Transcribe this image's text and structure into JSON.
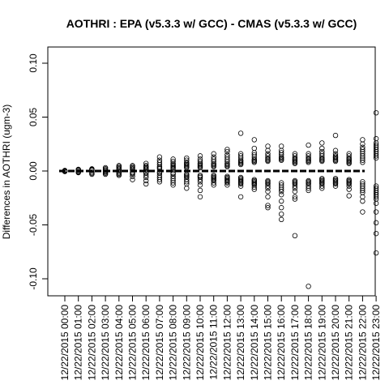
{
  "chart_data": {
    "type": "scatter",
    "title": "AOTHRI : EPA (v5.3.3 w/ GCC) - CMAS (v5.3.3 w/ GCC)",
    "ylabel": "Differences in AOTHRI (ugm-3)",
    "xlabel": "",
    "ylim": [
      -0.115,
      0.115
    ],
    "y_ticks": [
      -0.1,
      -0.05,
      0.0,
      0.05,
      0.1
    ],
    "y_tick_labels": [
      "-0.10",
      "-0.05",
      "0.00",
      "0.05",
      "0.10"
    ],
    "categories": [
      "12/22/2015 00:00",
      "12/22/2015 01:00",
      "12/22/2015 02:00",
      "12/22/2015 03:00",
      "12/22/2015 04:00",
      "12/22/2015 05:00",
      "12/22/2015 06:00",
      "12/22/2015 07:00",
      "12/22/2015 08:00",
      "12/22/2015 09:00",
      "12/22/2015 10:00",
      "12/22/2015 11:00",
      "12/22/2015 12:00",
      "12/22/2015 13:00",
      "12/22/2015 14:00",
      "12/22/2015 15:00",
      "12/22/2015 16:00",
      "12/22/2015 17:00",
      "12/22/2015 18:00",
      "12/22/2015 19:00",
      "12/22/2015 20:00",
      "12/22/2015 21:00",
      "12/22/2015 22:00",
      "12/22/2015 23:00"
    ],
    "series": [
      {
        "values": [
          [
            0.0005,
            -0.0005,
            0.0003,
            -0.0003,
            0.0
          ],
          [
            0.0015,
            -0.0015,
            0.001,
            -0.001,
            0.0005,
            -0.0005
          ],
          [
            0.002,
            -0.003,
            0.0015,
            -0.002,
            0.001,
            -0.001,
            0.0005
          ],
          [
            0.003,
            -0.003,
            0.002,
            -0.002,
            0.001,
            -0.001,
            0.0005,
            -0.0005
          ],
          [
            0.005,
            -0.004,
            0.004,
            -0.003,
            0.003,
            -0.002,
            0.002,
            -0.001,
            0.001
          ],
          [
            0.005,
            -0.008,
            0.004,
            -0.005,
            0.003,
            -0.003,
            0.002,
            -0.002,
            0.001,
            -0.001
          ],
          [
            0.007,
            -0.012,
            -0.009,
            0.005,
            -0.006,
            0.004,
            -0.004,
            0.003,
            -0.002,
            0.002,
            -0.001,
            0.001
          ],
          [
            0.013,
            0.01,
            -0.01,
            0.008,
            -0.008,
            0.006,
            -0.006,
            0.004,
            -0.004,
            0.003,
            -0.002,
            0.002,
            -0.001
          ],
          [
            0.011,
            -0.013,
            0.009,
            -0.011,
            0.007,
            -0.009,
            0.006,
            -0.007,
            0.005,
            -0.005,
            0.004,
            -0.003,
            0.003,
            -0.002,
            0.002
          ],
          [
            0.012,
            -0.016,
            0.01,
            -0.012,
            0.008,
            -0.01,
            0.007,
            -0.008,
            0.006,
            -0.006,
            0.005,
            -0.005,
            0.004,
            -0.004,
            0.003,
            -0.003
          ],
          [
            0.014,
            -0.024,
            -0.018,
            0.011,
            -0.013,
            0.009,
            -0.01,
            0.007,
            -0.008,
            0.006,
            -0.006,
            0.005,
            -0.005,
            0.004,
            -0.004,
            0.003
          ],
          [
            0.016,
            -0.013,
            0.013,
            -0.011,
            0.011,
            -0.009,
            0.009,
            -0.008,
            0.007,
            -0.007,
            0.006,
            -0.006,
            0.005,
            -0.005,
            0.004,
            -0.004
          ],
          [
            0.02,
            0.018,
            -0.013,
            0.015,
            -0.011,
            0.013,
            -0.01,
            0.011,
            -0.009,
            0.009,
            -0.008,
            0.007,
            -0.007,
            0.006,
            -0.006,
            0.005,
            -0.005,
            0.004
          ],
          [
            0.035,
            -0.024,
            0.016,
            -0.014,
            0.014,
            -0.012,
            0.012,
            -0.011,
            0.01,
            -0.01,
            0.009,
            -0.009,
            0.008,
            -0.008,
            0.007,
            -0.007,
            0.006,
            -0.006
          ],
          [
            0.029,
            0.021,
            -0.017,
            0.017,
            -0.015,
            0.015,
            -0.013,
            0.013,
            -0.012,
            0.011,
            -0.011,
            0.01,
            -0.01,
            0.009,
            -0.009,
            0.008,
            -0.008
          ],
          [
            0.023,
            -0.034,
            -0.032,
            -0.024,
            0.019,
            -0.019,
            0.016,
            -0.016,
            0.014,
            -0.014,
            0.012,
            -0.012,
            0.011,
            -0.011,
            0.01,
            -0.01,
            0.009,
            -0.009
          ],
          [
            0.023,
            -0.045,
            -0.04,
            -0.034,
            -0.028,
            0.019,
            -0.022,
            0.017,
            -0.019,
            0.015,
            -0.017,
            0.013,
            -0.015,
            0.012,
            -0.013,
            0.011,
            -0.011,
            0.01
          ],
          [
            0.016,
            -0.06,
            -0.026,
            -0.024,
            0.014,
            -0.019,
            0.012,
            -0.016,
            0.011,
            -0.014,
            0.01,
            -0.012,
            0.009,
            -0.011,
            0.008,
            -0.01,
            0.007,
            -0.009
          ],
          [
            0.024,
            0.016,
            -0.107,
            -0.018,
            0.014,
            -0.016,
            0.012,
            -0.014,
            0.011,
            -0.012,
            0.01,
            -0.011,
            0.009,
            -0.01,
            0.008,
            -0.009
          ],
          [
            0.026,
            0.021,
            -0.016,
            0.018,
            -0.014,
            0.016,
            -0.012,
            0.014,
            -0.011,
            0.012,
            -0.01,
            0.011,
            -0.009,
            0.01,
            -0.008,
            0.009,
            -0.007
          ],
          [
            0.033,
            0.019,
            -0.014,
            0.016,
            -0.012,
            0.014,
            -0.011,
            0.013,
            -0.01,
            0.012,
            -0.009,
            0.011,
            -0.008,
            0.01,
            -0.007,
            0.009
          ],
          [
            0.016,
            -0.023,
            0.014,
            -0.017,
            0.012,
            -0.014,
            0.011,
            -0.012,
            0.01,
            -0.011,
            0.009,
            -0.01,
            0.008,
            -0.009,
            0.007,
            -0.008
          ],
          [
            0.029,
            0.025,
            -0.038,
            -0.028,
            0.022,
            -0.024,
            0.02,
            -0.02,
            0.018,
            -0.018,
            0.016,
            -0.016,
            0.014,
            -0.014,
            0.012,
            -0.012,
            0.01,
            -0.01,
            0.008
          ],
          [
            0.054,
            0.03,
            -0.076,
            -0.058,
            -0.048,
            -0.038,
            0.026,
            -0.03,
            0.024,
            -0.026,
            0.022,
            -0.024,
            0.02,
            -0.022,
            0.018,
            -0.02,
            0.016,
            -0.018,
            0.014,
            -0.016,
            0.012,
            -0.014
          ]
        ]
      }
    ],
    "grid": false,
    "zero_line": 0
  }
}
